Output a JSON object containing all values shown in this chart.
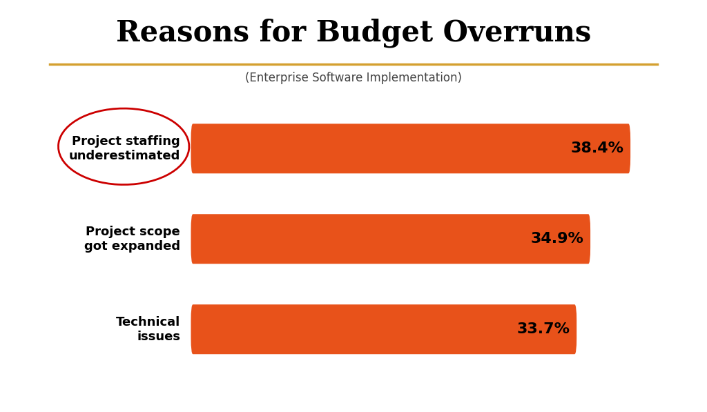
{
  "title": "Reasons for Budget Overruns",
  "subtitle": "(Enterprise Software Implementation)",
  "categories": [
    "Project staffing\nunderestimated",
    "Project scope\ngot expanded",
    "Technical\nissues"
  ],
  "values": [
    38.4,
    34.9,
    33.7
  ],
  "labels": [
    "38.4%",
    "34.9%",
    "33.7%"
  ],
  "bar_color": "#E8521A",
  "background_color": "#FFFFFF",
  "title_color": "#000000",
  "subtitle_color": "#444444",
  "label_color": "#000000",
  "category_color": "#000000",
  "separator_color": "#D4A030",
  "circle_color": "#CC0000",
  "max_val": 42,
  "title_fontsize": 30,
  "subtitle_fontsize": 12,
  "label_fontsize": 16,
  "category_fontsize": 13,
  "bar_height": 0.55,
  "bar_gap": 0.3
}
